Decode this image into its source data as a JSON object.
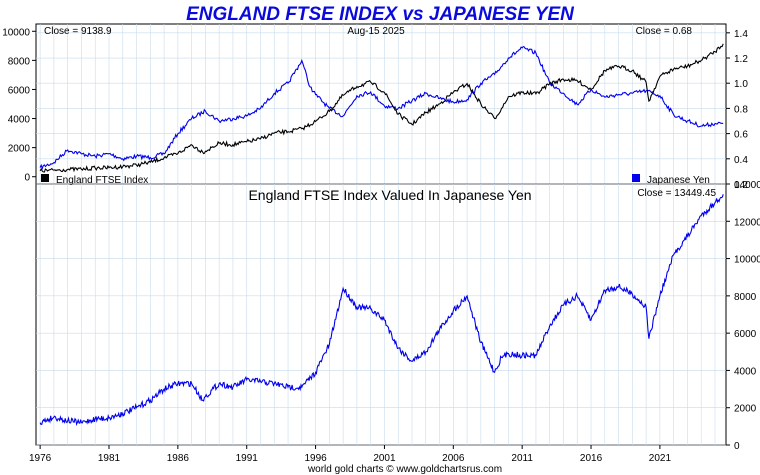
{
  "title": "ENGLAND FTSE INDEX vs JAPANESE YEN",
  "footer": "world gold charts © www.goldchartsrus.com",
  "colors": {
    "ftse": "#000000",
    "yen": "#0000ee",
    "ratio": "#0000ee",
    "title": "#0a0adc",
    "grid": "#c8dcec"
  },
  "chart_data": [
    {
      "type": "line",
      "panel": "top",
      "date_label": "Aug-15  2025",
      "left_close_label": "Close = 9138.9",
      "right_close_label": "Close = 0.68",
      "y_left_ticks": [
        0,
        2000,
        4000,
        6000,
        8000,
        10000
      ],
      "y_left_ylim": [
        -500,
        10500
      ],
      "y_right_ticks": [
        0.2,
        0.4,
        0.6,
        0.8,
        1.0,
        1.2,
        1.4
      ],
      "y_right_ylim": [
        0.2,
        1.47
      ],
      "grid": true,
      "legend": "bottom",
      "series": [
        {
          "name": "England FTSE Index",
          "axis": "left",
          "points": [
            [
              1976,
              400
            ],
            [
              1977,
              450
            ],
            [
              1978,
              500
            ],
            [
              1979,
              520
            ],
            [
              1980,
              600
            ],
            [
              1981,
              620
            ],
            [
              1982,
              700
            ],
            [
              1983,
              800
            ],
            [
              1984,
              1000
            ],
            [
              1985,
              1300
            ],
            [
              1986,
              1600
            ],
            [
              1987,
              2200
            ],
            [
              1987.8,
              1700
            ],
            [
              1988,
              1750
            ],
            [
              1989,
              2300
            ],
            [
              1990,
              2200
            ],
            [
              1991,
              2400
            ],
            [
              1992,
              2600
            ],
            [
              1993,
              3000
            ],
            [
              1994,
              3100
            ],
            [
              1995,
              3300
            ],
            [
              1996,
              3800
            ],
            [
              1997,
              4500
            ],
            [
              1998,
              5600
            ],
            [
              1999,
              6200
            ],
            [
              2000,
              6500
            ],
            [
              2001,
              5800
            ],
            [
              2002,
              4300
            ],
            [
              2003,
              3600
            ],
            [
              2004,
              4400
            ],
            [
              2005,
              5000
            ],
            [
              2006,
              5800
            ],
            [
              2007,
              6400
            ],
            [
              2008,
              5000
            ],
            [
              2009,
              4000
            ],
            [
              2009.5,
              4700
            ],
            [
              2010,
              5500
            ],
            [
              2011,
              5800
            ],
            [
              2012,
              5700
            ],
            [
              2013,
              6400
            ],
            [
              2014,
              6700
            ],
            [
              2015,
              6600
            ],
            [
              2016,
              6000
            ],
            [
              2017,
              7300
            ],
            [
              2018,
              7600
            ],
            [
              2019,
              7300
            ],
            [
              2020,
              6500
            ],
            [
              2020.2,
              5200
            ],
            [
              2021,
              6900
            ],
            [
              2022,
              7400
            ],
            [
              2023,
              7600
            ],
            [
              2024,
              8000
            ],
            [
              2025,
              8600
            ],
            [
              2025.6,
              9139
            ]
          ]
        },
        {
          "name": "Japanese Yen",
          "axis": "right",
          "points": [
            [
              1976,
              0.33
            ],
            [
              1977,
              0.37
            ],
            [
              1978,
              0.47
            ],
            [
              1979,
              0.44
            ],
            [
              1980,
              0.42
            ],
            [
              1981,
              0.44
            ],
            [
              1982,
              0.4
            ],
            [
              1983,
              0.42
            ],
            [
              1984,
              0.41
            ],
            [
              1985,
              0.44
            ],
            [
              1986,
              0.6
            ],
            [
              1987,
              0.72
            ],
            [
              1988,
              0.78
            ],
            [
              1989,
              0.7
            ],
            [
              1990,
              0.72
            ],
            [
              1991,
              0.74
            ],
            [
              1992,
              0.8
            ],
            [
              1993,
              0.92
            ],
            [
              1994,
              1.0
            ],
            [
              1995,
              1.18
            ],
            [
              1995.6,
              0.97
            ],
            [
              1996,
              0.91
            ],
            [
              1997,
              0.8
            ],
            [
              1998,
              0.74
            ],
            [
              1999,
              0.9
            ],
            [
              2000,
              0.93
            ],
            [
              2001,
              0.82
            ],
            [
              2002,
              0.8
            ],
            [
              2003,
              0.86
            ],
            [
              2004,
              0.92
            ],
            [
              2005,
              0.88
            ],
            [
              2006,
              0.85
            ],
            [
              2007,
              0.87
            ],
            [
              2008,
              1.0
            ],
            [
              2009,
              1.07
            ],
            [
              2010,
              1.2
            ],
            [
              2011,
              1.28
            ],
            [
              2012,
              1.24
            ],
            [
              2013,
              1.0
            ],
            [
              2014,
              0.92
            ],
            [
              2015,
              0.83
            ],
            [
              2016,
              0.95
            ],
            [
              2017,
              0.89
            ],
            [
              2018,
              0.91
            ],
            [
              2019,
              0.92
            ],
            [
              2020,
              0.94
            ],
            [
              2021,
              0.9
            ],
            [
              2022,
              0.75
            ],
            [
              2023,
              0.7
            ],
            [
              2024,
              0.66
            ],
            [
              2025,
              0.68
            ],
            [
              2025.6,
              0.68
            ]
          ]
        }
      ]
    },
    {
      "type": "line",
      "panel": "bottom",
      "title": "England FTSE Index Valued In Japanese Yen",
      "close_label": "Close = 13449.45",
      "y_right_ticks": [
        0,
        2000,
        4000,
        6000,
        8000,
        10000,
        12000,
        14000
      ],
      "ylim": [
        0,
        14000
      ],
      "x_ticks": [
        1976,
        1981,
        1986,
        1991,
        1996,
        2001,
        2006,
        2011,
        2016,
        2021
      ],
      "xlim": [
        1975.7,
        2025.8
      ],
      "grid": true,
      "series": [
        {
          "points": [
            [
              1976,
              1200
            ],
            [
              1977,
              1500
            ],
            [
              1978,
              1300
            ],
            [
              1979,
              1200
            ],
            [
              1980,
              1400
            ],
            [
              1981,
              1450
            ],
            [
              1982,
              1700
            ],
            [
              1983,
              2000
            ],
            [
              1984,
              2400
            ],
            [
              1985,
              3000
            ],
            [
              1986,
              3300
            ],
            [
              1987,
              3300
            ],
            [
              1987.8,
              2400
            ],
            [
              1988,
              2600
            ],
            [
              1989,
              3300
            ],
            [
              1990,
              3100
            ],
            [
              1991,
              3500
            ],
            [
              1992,
              3400
            ],
            [
              1993,
              3300
            ],
            [
              1994,
              3100
            ],
            [
              1995,
              3100
            ],
            [
              1996,
              3900
            ],
            [
              1997,
              5400
            ],
            [
              1998,
              8400
            ],
            [
              1999,
              7400
            ],
            [
              2000,
              7300
            ],
            [
              2001,
              6700
            ],
            [
              2002,
              5200
            ],
            [
              2003,
              4500
            ],
            [
              2004,
              5000
            ],
            [
              2005,
              6200
            ],
            [
              2006,
              7200
            ],
            [
              2007,
              8000
            ],
            [
              2008,
              5500
            ],
            [
              2009,
              3900
            ],
            [
              2009.5,
              4700
            ],
            [
              2010,
              4900
            ],
            [
              2011,
              4800
            ],
            [
              2012,
              4800
            ],
            [
              2013,
              6400
            ],
            [
              2014,
              7500
            ],
            [
              2015,
              8000
            ],
            [
              2016,
              6700
            ],
            [
              2017,
              8300
            ],
            [
              2018,
              8500
            ],
            [
              2019,
              8100
            ],
            [
              2020,
              7400
            ],
            [
              2020.2,
              5700
            ],
            [
              2021,
              8000
            ],
            [
              2022,
              10200
            ],
            [
              2023,
              11200
            ],
            [
              2024,
              12300
            ],
            [
              2025,
              13000
            ],
            [
              2025.6,
              13449
            ]
          ]
        }
      ]
    }
  ]
}
